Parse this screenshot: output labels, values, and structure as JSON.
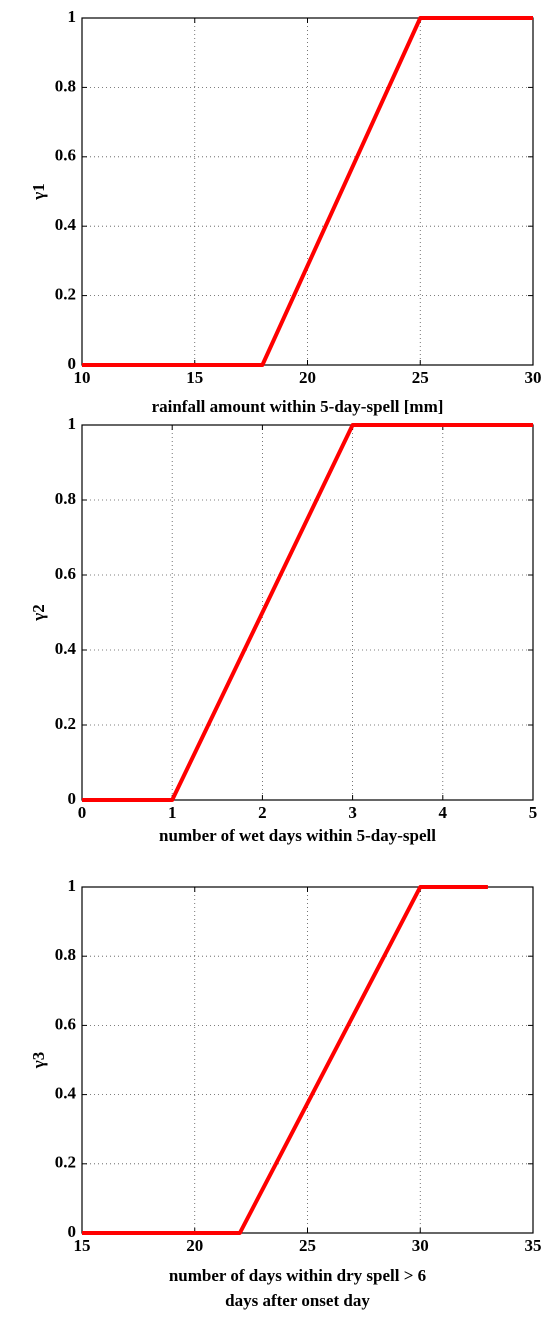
{
  "chart_data": [
    {
      "type": "line",
      "ylabel": "γ1",
      "xlabel": "rainfall amount within 5-day-spell [mm]",
      "x": [
        10,
        18,
        25,
        30
      ],
      "values": [
        0,
        0,
        1,
        1
      ],
      "color": "#ff0000",
      "xlim": [
        10,
        30
      ],
      "xticks": [
        10,
        15,
        20,
        25,
        30
      ],
      "ylim": [
        0,
        1
      ],
      "yticks": [
        0,
        0.2,
        0.4,
        0.6,
        0.8,
        1
      ],
      "grid": true
    },
    {
      "type": "line",
      "ylabel": "γ2",
      "xlabel": "number of wet days within 5-day-spell",
      "x": [
        0,
        1,
        3,
        5
      ],
      "values": [
        0,
        0,
        1,
        1
      ],
      "color": "#ff0000",
      "xlim": [
        0,
        5
      ],
      "xticks": [
        0,
        1,
        2,
        3,
        4,
        5
      ],
      "ylim": [
        0,
        1
      ],
      "yticks": [
        0,
        0.2,
        0.4,
        0.6,
        0.8,
        1
      ],
      "grid": true
    },
    {
      "type": "line",
      "ylabel": "γ3",
      "xlabel": [
        "number of days within dry spell > 6",
        "days after onset day"
      ],
      "x": [
        15,
        22,
        30,
        33
      ],
      "values": [
        0,
        0,
        1,
        1
      ],
      "color": "#ff0000",
      "xlim": [
        15,
        35
      ],
      "xticks": [
        15,
        20,
        25,
        30,
        35
      ],
      "ylim": [
        0,
        1
      ],
      "yticks": [
        0,
        0.2,
        0.4,
        0.6,
        0.8,
        1
      ],
      "grid": true
    }
  ]
}
